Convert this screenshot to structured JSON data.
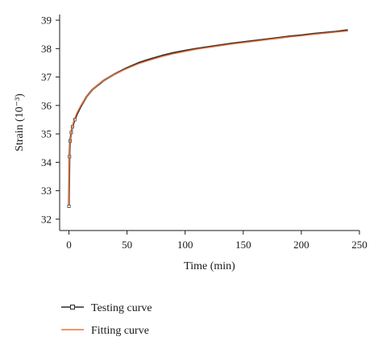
{
  "chart_data": {
    "type": "line",
    "xlabel": "Time (min)",
    "ylabel": "Strain (10⁻³)",
    "xlim": [
      -8,
      250
    ],
    "ylim": [
      31.6,
      39.2
    ],
    "xticks": [
      0,
      50,
      100,
      150,
      200,
      250
    ],
    "yticks": [
      32,
      33,
      34,
      35,
      36,
      37,
      38,
      39
    ],
    "grid": false,
    "legend_position": "bottom-left",
    "series": [
      {
        "name": "Testing curve",
        "color": "#2b2b2b",
        "marker": "square",
        "x": [
          0,
          0.5,
          1,
          2,
          3,
          5,
          7,
          10,
          15,
          20,
          25,
          30,
          40,
          50,
          60,
          70,
          80,
          90,
          100,
          110,
          120,
          130,
          140,
          150,
          160,
          170,
          180,
          190,
          200,
          210,
          220,
          230,
          240
        ],
        "y": [
          32.45,
          34.2,
          34.75,
          35.05,
          35.25,
          35.5,
          35.7,
          35.95,
          36.3,
          36.55,
          36.72,
          36.88,
          37.12,
          37.32,
          37.5,
          37.63,
          37.75,
          37.85,
          37.93,
          38.0,
          38.06,
          38.12,
          38.18,
          38.23,
          38.28,
          38.33,
          38.38,
          38.43,
          38.47,
          38.52,
          38.56,
          38.6,
          38.65
        ]
      },
      {
        "name": "Fitting curve",
        "color": "#e8733a",
        "marker": "none",
        "x": [
          0,
          0.5,
          1,
          2,
          3,
          5,
          7,
          10,
          15,
          20,
          25,
          30,
          40,
          50,
          60,
          70,
          80,
          90,
          100,
          110,
          120,
          130,
          140,
          150,
          160,
          170,
          180,
          190,
          200,
          210,
          220,
          230,
          240
        ],
        "y": [
          32.5,
          34.15,
          34.7,
          35.05,
          35.28,
          35.55,
          35.75,
          35.98,
          36.3,
          36.55,
          36.73,
          36.88,
          37.12,
          37.3,
          37.47,
          37.6,
          37.72,
          37.82,
          37.9,
          37.98,
          38.04,
          38.1,
          38.16,
          38.21,
          38.26,
          38.31,
          38.36,
          38.41,
          38.45,
          38.5,
          38.54,
          38.58,
          38.62
        ]
      }
    ]
  }
}
